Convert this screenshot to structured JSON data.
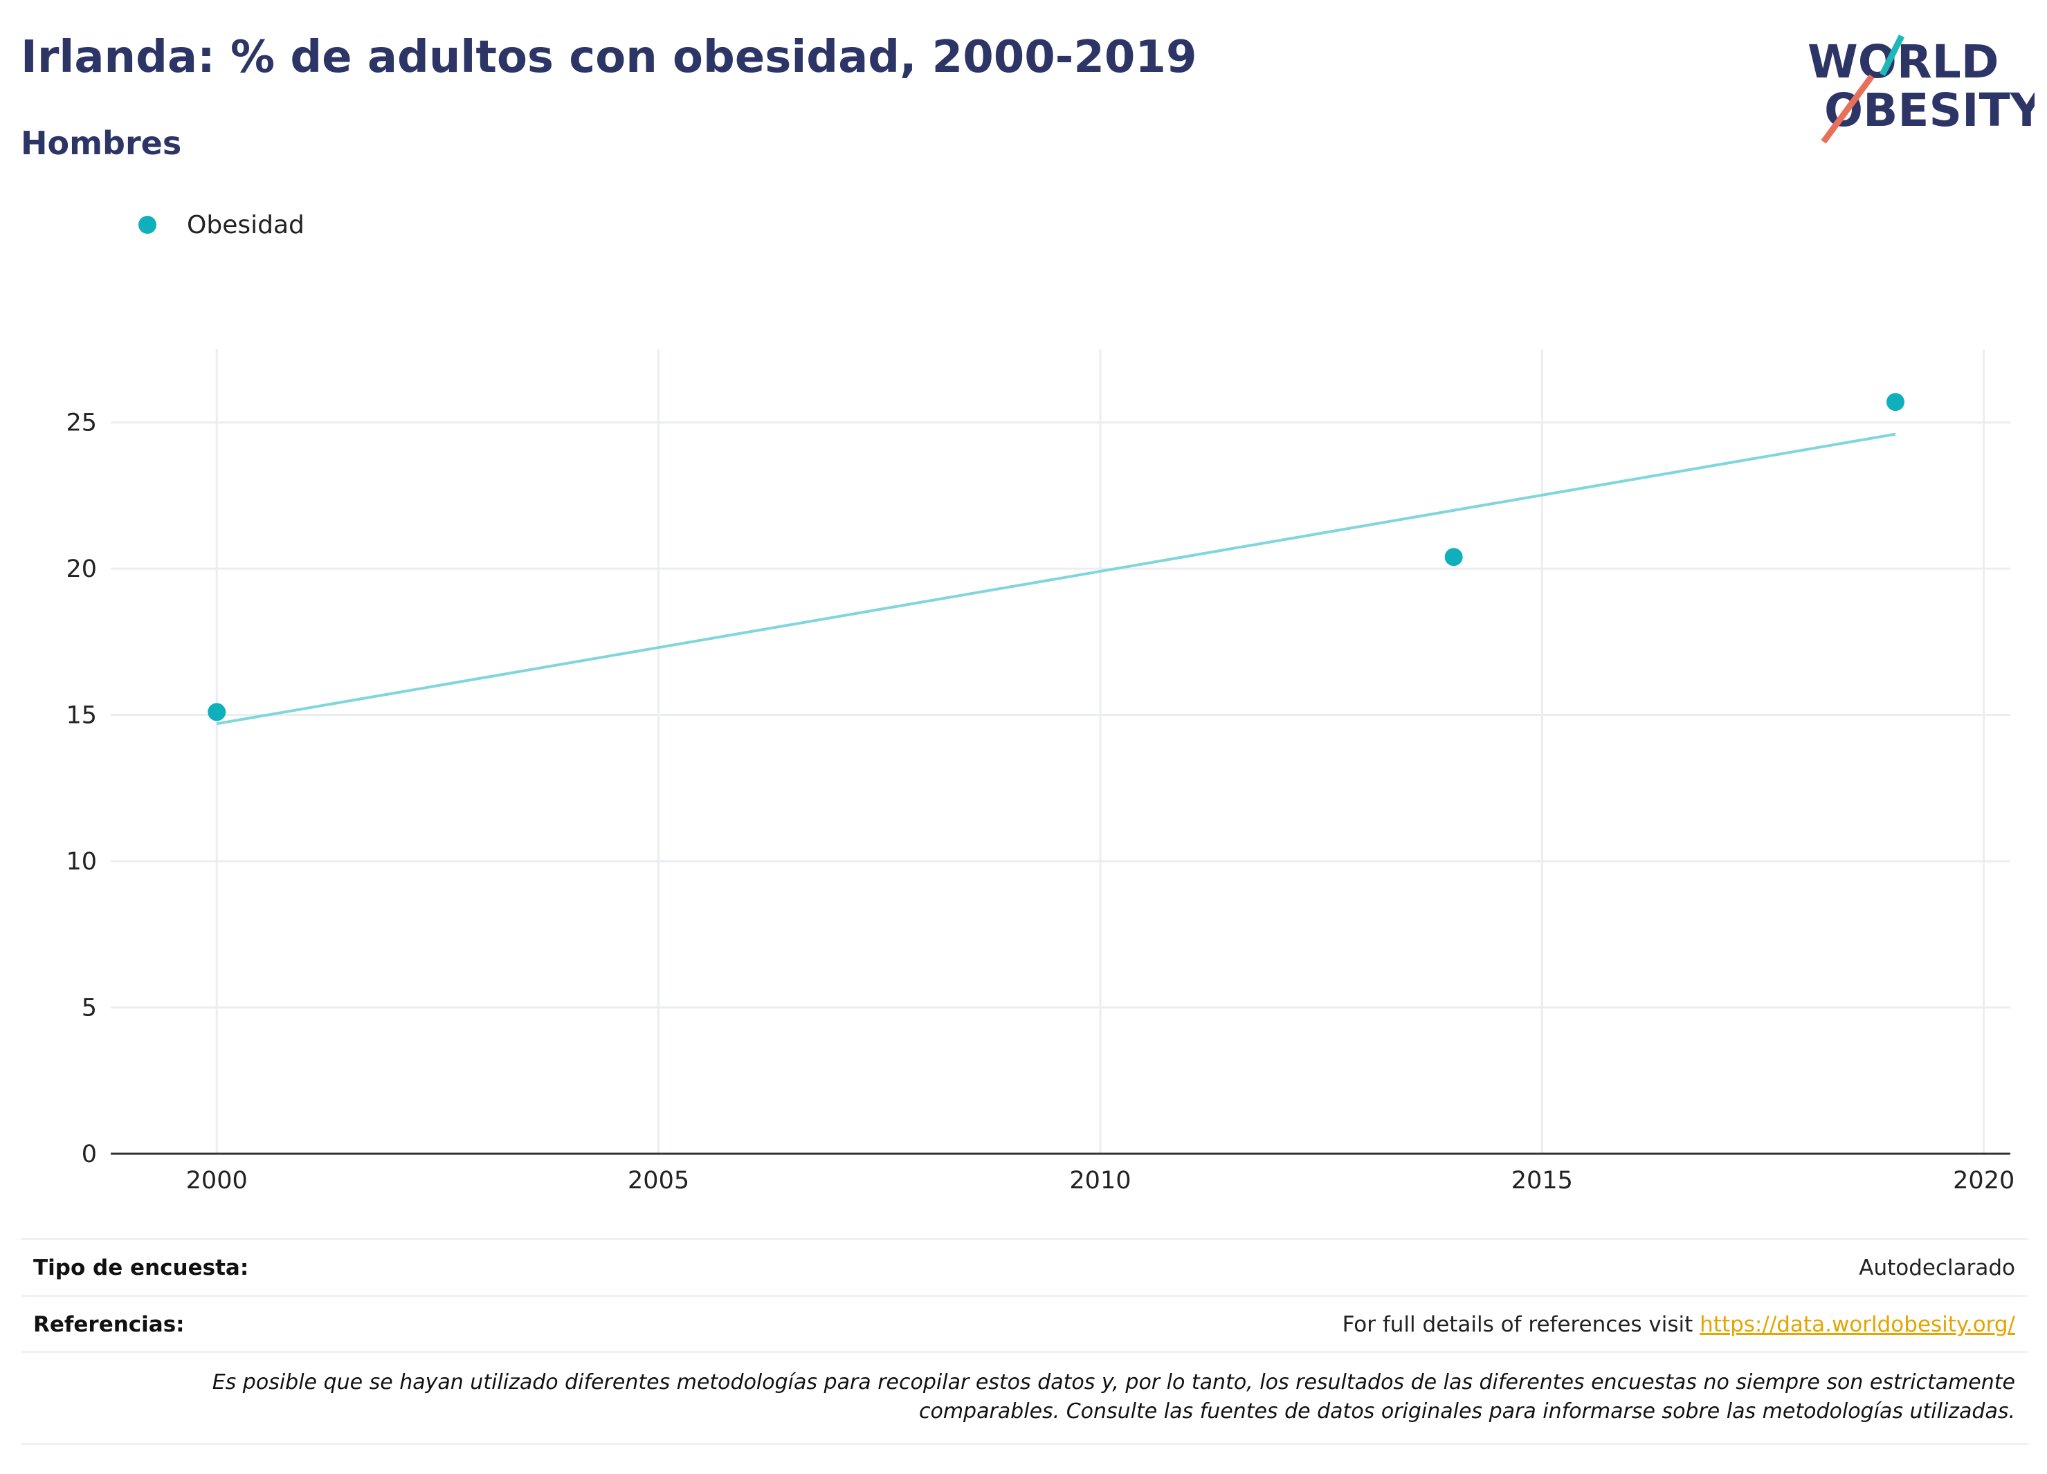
{
  "header": {
    "title": "Irlanda: % de adultos con obesidad, 2000-2019",
    "subtitle": "Hombres"
  },
  "logo": {
    "line1": "WORLD",
    "line2": "OBESITY",
    "colors": {
      "navy": "#2c3565",
      "teal": "#1eb8b8",
      "coral": "#e8705a"
    }
  },
  "legend": {
    "label": "Obesidad",
    "color": "#0fb0bb"
  },
  "chart_data": {
    "type": "scatter",
    "series": [
      {
        "name": "Obesidad",
        "x": [
          2000,
          2014,
          2019
        ],
        "y": [
          15.1,
          20.4,
          25.7
        ],
        "color": "#0fb0bb"
      }
    ],
    "trendline": {
      "x": [
        2000,
        2019
      ],
      "y": [
        14.7,
        24.6
      ],
      "color": "#7fd6dc"
    },
    "xlim": [
      1998.8,
      2020.3
    ],
    "ylim": [
      0,
      27.5
    ],
    "xticks": [
      2000,
      2005,
      2010,
      2015,
      2020
    ],
    "yticks": [
      0,
      5,
      10,
      15,
      20,
      25
    ],
    "grid": true,
    "legend_position": "top-left",
    "title": "Irlanda: % de adultos con obesidad, 2000-2019",
    "subtitle": "Hombres",
    "xlabel": "",
    "ylabel": ""
  },
  "info": {
    "survey_label": "Tipo de encuesta:",
    "survey_value": "Autodeclarado",
    "refs_label": "Referencias:",
    "refs_text": "For full details of references visit ",
    "refs_link": "https://data.worldobesity.org/",
    "note_line1": "Es posible que se hayan utilizado diferentes metodologías para recopilar estos datos y, por lo tanto, los resultados de las diferentes encuestas no siempre son estrictamente",
    "note_line2": "comparables. Consulte las fuentes de datos originales para informarse sobre las metodologías utilizadas."
  }
}
